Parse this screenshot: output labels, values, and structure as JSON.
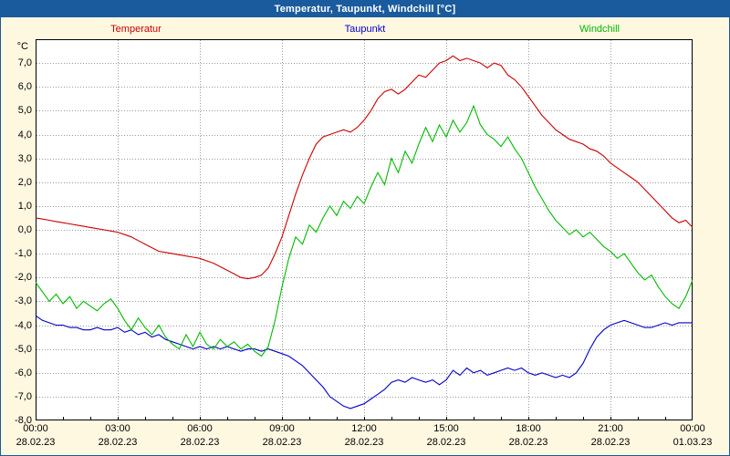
{
  "colors": {
    "header_bg": "#1a5b9e",
    "page_background": "#fff8e1",
    "plot_background": "#ffffff",
    "grid": "#999999",
    "frame": "#000000"
  },
  "chart_data": {
    "type": "line",
    "title": "Temperatur, Taupunkt, Windchill [°C]",
    "ylabel": "°C",
    "ylim": [
      -8,
      8
    ],
    "y_tick_step": 1,
    "y_tick_labels": [
      "7,0",
      "6,0",
      "5,0",
      "4,0",
      "3,0",
      "2,0",
      "1,0",
      "0,0",
      "-1,0",
      "-2,0",
      "-3,0",
      "-4,0",
      "-5,0",
      "-6,0",
      "-7,0",
      "-8,0"
    ],
    "x_range_hours": 24,
    "x_step_hours": 0.25,
    "grid": true,
    "legend_position": "top",
    "x_ticks": [
      {
        "time": "00:00",
        "date": "28.02.23"
      },
      {
        "time": "03:00",
        "date": "28.02.23"
      },
      {
        "time": "06:00",
        "date": "28.02.23"
      },
      {
        "time": "09:00",
        "date": "28.02.23"
      },
      {
        "time": "12:00",
        "date": "28.02.23"
      },
      {
        "time": "15:00",
        "date": "28.02.23"
      },
      {
        "time": "18:00",
        "date": "28.02.23"
      },
      {
        "time": "21:00",
        "date": "28.02.23"
      },
      {
        "time": "00:00",
        "date": "01.03.23"
      }
    ],
    "series": [
      {
        "name": "Temperatur",
        "color": "#cc0000",
        "values": [
          0.5,
          0.45,
          0.4,
          0.35,
          0.3,
          0.25,
          0.2,
          0.15,
          0.1,
          0.05,
          0.0,
          -0.05,
          -0.1,
          -0.2,
          -0.3,
          -0.45,
          -0.6,
          -0.75,
          -0.9,
          -0.95,
          -1.0,
          -1.05,
          -1.1,
          -1.15,
          -1.2,
          -1.3,
          -1.4,
          -1.55,
          -1.7,
          -1.85,
          -2.0,
          -2.05,
          -2.0,
          -1.9,
          -1.6,
          -1.0,
          -0.3,
          0.6,
          1.5,
          2.3,
          3.0,
          3.6,
          3.9,
          4.0,
          4.1,
          4.2,
          4.1,
          4.3,
          4.6,
          5.0,
          5.5,
          5.8,
          5.9,
          5.7,
          5.9,
          6.2,
          6.5,
          6.4,
          6.7,
          7.0,
          7.1,
          7.3,
          7.1,
          7.2,
          7.1,
          7.0,
          6.8,
          7.0,
          6.9,
          6.5,
          6.3,
          6.0,
          5.6,
          5.2,
          4.8,
          4.5,
          4.2,
          4.0,
          3.8,
          3.7,
          3.6,
          3.4,
          3.3,
          3.1,
          2.8,
          2.6,
          2.4,
          2.2,
          2.0,
          1.7,
          1.4,
          1.1,
          0.8,
          0.5,
          0.3,
          0.4,
          0.1
        ]
      },
      {
        "name": "Taupunkt",
        "color": "#0000cc",
        "values": [
          -3.6,
          -3.8,
          -3.9,
          -4.0,
          -4.0,
          -4.1,
          -4.1,
          -4.2,
          -4.2,
          -4.1,
          -4.2,
          -4.2,
          -4.1,
          -4.3,
          -4.2,
          -4.4,
          -4.3,
          -4.5,
          -4.4,
          -4.6,
          -4.7,
          -4.8,
          -4.9,
          -5.0,
          -4.9,
          -5.0,
          -4.9,
          -5.0,
          -4.9,
          -5.0,
          -5.1,
          -5.0,
          -5.0,
          -5.1,
          -5.0,
          -5.1,
          -5.2,
          -5.3,
          -5.5,
          -5.7,
          -6.0,
          -6.3,
          -6.6,
          -7.0,
          -7.2,
          -7.4,
          -7.5,
          -7.4,
          -7.3,
          -7.1,
          -6.9,
          -6.7,
          -6.4,
          -6.3,
          -6.4,
          -6.2,
          -6.3,
          -6.4,
          -6.3,
          -6.5,
          -6.3,
          -5.9,
          -6.1,
          -5.8,
          -6.0,
          -5.9,
          -6.1,
          -6.0,
          -5.9,
          -5.8,
          -5.9,
          -5.8,
          -6.0,
          -6.1,
          -6.0,
          -6.1,
          -6.2,
          -6.1,
          -6.2,
          -6.0,
          -5.6,
          -5.0,
          -4.5,
          -4.2,
          -4.0,
          -3.9,
          -3.8,
          -3.9,
          -4.0,
          -4.1,
          -4.1,
          -4.0,
          -3.9,
          -4.0,
          -3.9,
          -3.9,
          -3.9
        ]
      },
      {
        "name": "Windchill",
        "color": "#00bb00",
        "values": [
          -2.2,
          -2.6,
          -3.0,
          -2.7,
          -3.1,
          -2.8,
          -3.3,
          -3.0,
          -3.2,
          -3.4,
          -3.1,
          -2.9,
          -3.3,
          -3.8,
          -4.2,
          -3.7,
          -4.1,
          -4.4,
          -4.0,
          -4.5,
          -4.8,
          -5.0,
          -4.4,
          -4.9,
          -4.3,
          -4.8,
          -5.0,
          -4.6,
          -4.9,
          -4.7,
          -5.0,
          -4.8,
          -5.1,
          -5.3,
          -4.9,
          -3.8,
          -2.4,
          -1.2,
          -0.3,
          -0.6,
          0.2,
          -0.1,
          0.5,
          1.0,
          0.6,
          1.2,
          0.9,
          1.4,
          1.1,
          1.8,
          2.4,
          1.9,
          3.0,
          2.4,
          3.3,
          2.8,
          3.6,
          4.3,
          3.7,
          4.4,
          3.9,
          4.6,
          4.1,
          4.5,
          5.2,
          4.4,
          4.0,
          3.8,
          3.5,
          3.9,
          3.4,
          3.0,
          2.4,
          1.8,
          1.3,
          0.8,
          0.4,
          0.1,
          -0.2,
          0.0,
          -0.3,
          -0.1,
          -0.4,
          -0.7,
          -0.9,
          -1.2,
          -1.0,
          -1.4,
          -1.8,
          -2.1,
          -1.9,
          -2.4,
          -2.8,
          -3.1,
          -3.3,
          -2.8,
          -2.1
        ]
      }
    ]
  }
}
